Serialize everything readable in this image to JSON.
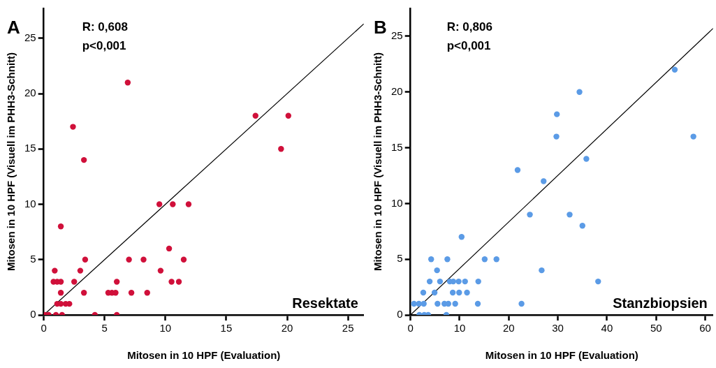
{
  "chart_data": [
    {
      "type": "scatter",
      "xlabel": "Mitosen in 10 HPF (Evaluation)",
      "ylabel": "Mitosen in 10 HPF (Visuell im PHH3-Schnitt)",
      "annotations": [
        "A",
        "R: 0,608",
        "p<0,001",
        "Resektate"
      ],
      "series": [
        {
          "type": "scatter",
          "color": "#d0103a",
          "x": [
            6.9,
            2.4,
            3.3,
            17.4,
            20.1,
            19.5,
            9.5,
            10.6,
            11.9,
            1.4,
            10.3,
            3.4,
            7.0,
            8.2,
            11.5,
            0.9,
            3.0,
            9.6,
            0.8,
            1.1,
            1.4,
            2.5,
            6.0,
            10.5,
            11.1,
            1.4,
            3.3,
            5.3,
            5.6,
            5.9,
            7.2,
            8.5,
            1.1,
            1.4,
            1.8,
            2.1,
            0.1,
            0.4,
            1.0,
            1.5,
            4.2,
            6.0
          ],
          "values": [
            21,
            17,
            14,
            18,
            18,
            15,
            10,
            10,
            10,
            8,
            6,
            5,
            5,
            5,
            5,
            4,
            4,
            4,
            3,
            3,
            3,
            3,
            3,
            3,
            3,
            2,
            2,
            2,
            2,
            2,
            2,
            2,
            1,
            1,
            1,
            1,
            0,
            0,
            0,
            0,
            0,
            0
          ]
        },
        {
          "type": "line",
          "color": "#000000",
          "marker": "none",
          "x": [
            0,
            26.3
          ],
          "values": [
            0,
            26.3
          ]
        }
      ],
      "xlim": [
        0,
        26.3
      ],
      "ylim": [
        0,
        27.7
      ],
      "xticks": [
        0,
        5,
        10,
        15,
        20,
        25
      ],
      "yticks": [
        0,
        5,
        10,
        15,
        20,
        25
      ],
      "grid": false,
      "legend": false,
      "marker": "circle"
    },
    {
      "type": "scatter",
      "xlabel": "Mitosen in 10 HPF (Evaluation)",
      "ylabel": "Mitosen in 10 HPF (Visuell im PHH3-Schnitt)",
      "annotations": [
        "B",
        "R: 0,806",
        "p<0,001",
        "Stanzbiopsien"
      ],
      "series": [
        {
          "type": "scatter",
          "color": "#5b9be6",
          "x": [
            53.8,
            34.4,
            29.8,
            29.7,
            57.6,
            35.8,
            21.8,
            27.1,
            24.3,
            32.4,
            35.0,
            10.4,
            4.2,
            7.5,
            15.1,
            17.5,
            5.4,
            26.7,
            3.9,
            6.0,
            8.0,
            8.7,
            9.8,
            11.1,
            13.8,
            38.2,
            2.6,
            4.9,
            8.6,
            9.9,
            11.5,
            0.7,
            1.7,
            2.7,
            5.5,
            6.9,
            7.7,
            9.1,
            13.7,
            22.6,
            1.8,
            2.8,
            3.6,
            7.3
          ],
          "values": [
            22,
            20,
            18,
            16,
            16,
            14,
            13,
            12,
            9,
            9,
            8,
            7,
            5,
            5,
            5,
            5,
            4,
            4,
            3,
            3,
            3,
            3,
            3,
            3,
            3,
            3,
            2,
            2,
            2,
            2,
            2,
            1,
            1,
            1,
            1,
            1,
            1,
            1,
            1,
            1,
            0,
            0,
            0,
            0
          ]
        },
        {
          "type": "line",
          "color": "#000000",
          "marker": "none",
          "x": [
            0,
            61.6
          ],
          "values": [
            0,
            25.7
          ]
        }
      ],
      "xlim": [
        0,
        61.6
      ],
      "ylim": [
        0,
        27.5
      ],
      "xticks": [
        0,
        10,
        20,
        30,
        40,
        50,
        60
      ],
      "yticks": [
        0,
        5,
        10,
        15,
        20,
        25
      ],
      "grid": false,
      "legend": false,
      "marker": "circle"
    }
  ]
}
